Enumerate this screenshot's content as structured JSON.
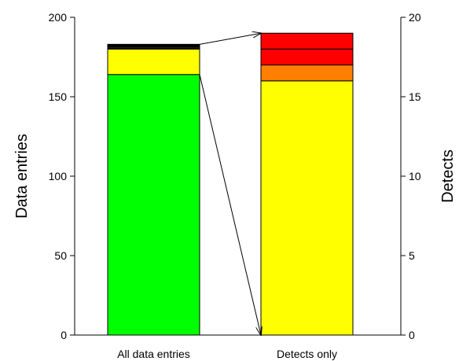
{
  "chart_data": {
    "type": "bar",
    "stacked": true,
    "title": "",
    "categories": [
      "All data entries",
      "Detects only"
    ],
    "left_axis": {
      "label": "Data entries",
      "ylim": [
        0,
        200
      ],
      "ticks": [
        "0",
        "50",
        "100",
        "150",
        "200"
      ]
    },
    "right_axis": {
      "label": "Detects",
      "ylim": [
        0,
        20
      ],
      "ticks": [
        "0",
        "5",
        "10",
        "15",
        "20"
      ]
    },
    "bars": [
      {
        "category": "All data entries",
        "axis": "left",
        "segments": [
          {
            "value": 164,
            "color": "#00ff00"
          },
          {
            "value": 16,
            "color": "#ffff00"
          },
          {
            "value": 1.5,
            "color": "#1a1a1a"
          },
          {
            "value": 1.5,
            "color": "#000000"
          }
        ]
      },
      {
        "category": "Detects only",
        "axis": "right",
        "segments": [
          {
            "value": 16,
            "color": "#ffff00"
          },
          {
            "value": 1,
            "color": "#ff8000"
          },
          {
            "value": 1,
            "color": "#ff0000"
          },
          {
            "value": 1,
            "color": "#ff0000"
          }
        ]
      }
    ],
    "connectors": [
      {
        "from_category": "All data entries",
        "from_value": 183,
        "from_axis": "left",
        "to_category": "Detects only",
        "to_value": 19,
        "to_axis": "right"
      },
      {
        "from_category": "All data entries",
        "from_value": 164,
        "from_axis": "left",
        "to_category": "Detects only",
        "to_value": 0,
        "to_axis": "right"
      }
    ],
    "grid": false,
    "legend": "none"
  }
}
